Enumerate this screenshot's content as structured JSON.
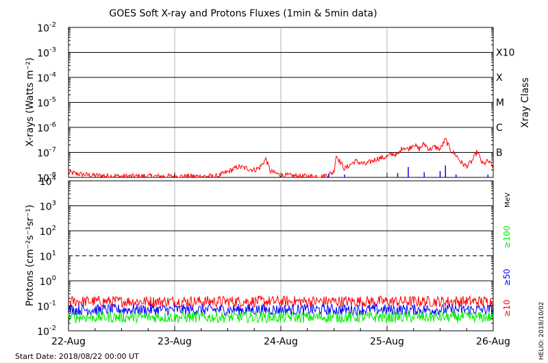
{
  "chart_data": {
    "type": "line",
    "title": "GOES Soft X-ray and Protons Fluxes   (1min & 5min data)",
    "footer_left": "Start Date: 2018/08/22 00:00 UT",
    "footer_right": "HELIO: 2018/10/02",
    "x": {
      "unit": "days since start",
      "range": [
        0,
        4
      ],
      "ticks": [
        {
          "value": 0,
          "label": "22-Aug"
        },
        {
          "value": 1,
          "label": "23-Aug"
        },
        {
          "value": 2,
          "label": "24-Aug"
        },
        {
          "value": 3,
          "label": "25-Aug"
        },
        {
          "value": 4,
          "label": "26-Aug"
        }
      ]
    },
    "panels": [
      {
        "id": "xray",
        "ylabel": "X-rays (Watts m⁻²)",
        "scale": "log",
        "ylim": [
          1e-08,
          0.01
        ],
        "grid_horizontal_at": [
          1e-07,
          1e-06,
          1e-05,
          0.0001,
          0.001
        ],
        "yticks": [
          {
            "value": 1e-08,
            "base": "10",
            "exp": "-8"
          },
          {
            "value": 1e-07,
            "base": "10",
            "exp": "-7"
          },
          {
            "value": 1e-06,
            "base": "10",
            "exp": "-6"
          },
          {
            "value": 1e-05,
            "base": "10",
            "exp": "-5"
          },
          {
            "value": 0.0001,
            "base": "10",
            "exp": "-4"
          },
          {
            "value": 0.001,
            "base": "10",
            "exp": "-3"
          },
          {
            "value": 0.01,
            "base": "10",
            "exp": "-2"
          }
        ],
        "right_axis_title": "Xray Class",
        "right_labels": [
          {
            "value": 0.001,
            "label": "X10"
          },
          {
            "value": 0.0001,
            "label": "X"
          },
          {
            "value": 1e-05,
            "label": "M"
          },
          {
            "value": 1e-06,
            "label": "C"
          },
          {
            "value": 1e-07,
            "label": "B"
          }
        ],
        "series": [
          {
            "color": "#ff0000",
            "x": [
              0,
              0.2,
              0.5,
              0.8,
              1.0,
              1.2,
              1.4,
              1.5,
              1.6,
              1.7,
              1.75,
              1.8,
              1.86,
              1.9,
              2.0,
              2.2,
              2.4,
              2.5,
              2.52,
              2.6,
              2.7,
              2.8,
              2.9,
              3.0,
              3.05,
              3.1,
              3.15,
              3.2,
              3.25,
              3.3,
              3.35,
              3.4,
              3.45,
              3.5,
              3.55,
              3.6,
              3.65,
              3.7,
              3.75,
              3.8,
              3.85,
              3.9,
              3.95,
              4.0
            ],
            "y": [
              1.4e-08,
              1.1e-08,
              1e-08,
              1e-08,
              1e-08,
              1e-08,
              1e-08,
              1.5e-08,
              2.4e-08,
              2e-08,
              1.8e-08,
              2.2e-08,
              5e-08,
              1.6e-08,
              1.1e-08,
              1e-08,
              1e-08,
              1.5e-08,
              7e-08,
              2e-08,
              4e-08,
              3e-08,
              5e-08,
              6e-08,
              8e-08,
              7e-08,
              1.5e-07,
              1.2e-07,
              2e-07,
              1.2e-07,
              2e-07,
              1.2e-07,
              1.5e-07,
              1.2e-07,
              3e-07,
              1.1e-07,
              7e-08,
              3.5e-08,
              2.5e-08,
              4e-08,
              1e-07,
              3e-08,
              4e-08,
              2.5e-08
            ]
          },
          {
            "color": "#0000ff",
            "x": [
              2.45,
              2.6,
              3.1,
              3.2,
              3.35,
              3.5,
              3.55,
              3.65,
              3.95
            ],
            "y": [
              1.4e-08,
              1.3e-08,
              1.5e-08,
              2.6e-08,
              1.6e-08,
              1.8e-08,
              3e-08,
              1.3e-08,
              1.3e-08
            ]
          }
        ]
      },
      {
        "id": "protons",
        "ylabel": "Protons (cm⁻²s⁻¹sr⁻¹)",
        "scale": "log",
        "ylim": [
          0.01,
          10000
        ],
        "grid_horizontal_at": [
          1,
          100,
          1000
        ],
        "dashed_at": 10,
        "yticks": [
          {
            "value": 0.01,
            "base": "10",
            "exp": "-2"
          },
          {
            "value": 0.1,
            "base": "10",
            "exp": "-1"
          },
          {
            "value": 1,
            "base": "10",
            "exp": "0"
          },
          {
            "value": 10,
            "base": "10",
            "exp": "1"
          },
          {
            "value": 100,
            "base": "10",
            "exp": "2"
          },
          {
            "value": 1000,
            "base": "10",
            "exp": "3"
          },
          {
            "value": 10000,
            "base": "10",
            "exp": "4"
          }
        ],
        "right_unit": "MeV",
        "series": [
          {
            "name": "≥10",
            "color": "#ff0000",
            "level": 0.15
          },
          {
            "name": "≥50",
            "color": "#0000ff",
            "level": 0.07
          },
          {
            "name": "≥100",
            "color": "#00ee00",
            "level": 0.035
          }
        ]
      }
    ]
  }
}
